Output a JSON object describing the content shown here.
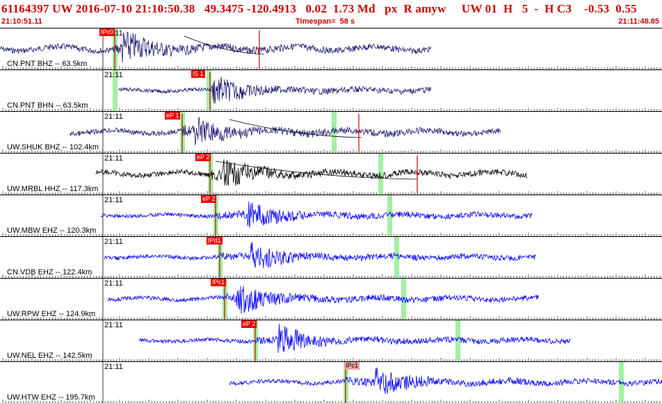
{
  "header": {
    "title": "61164397 UW 2016-07-10 21:10:50.38   49.3475 -120.4913   0.02  1.73 Md   px  R amyw     UW 01  H   5  -  H C3    -0.53  0.55",
    "start_time": "21:10:51.11",
    "timespan": "Timespan=  58 s",
    "end_time": "21:11:48.85"
  },
  "panels": [
    {
      "label": "CN.PNT BHZ -- 63.5km",
      "tick": "21:11",
      "pick": "IPc0",
      "pick_color": "#ee0000",
      "trace_color": "#1a1a6e"
    },
    {
      "label": "CN.PNT BHN -- 63.5km",
      "tick": "21:11",
      "pick": "iS 1",
      "pick_color": "#ee0000",
      "trace_color": "#1a1a6e"
    },
    {
      "label": "UW.SHUK BHZ -- 102.4km",
      "tick": "21:11",
      "pick": "eP 1",
      "pick_color": "#ee0000",
      "trace_color": "#1a1a6e"
    },
    {
      "label": "UW.MRBL HHZ -- 117.3km",
      "tick": "21:11",
      "pick": "eP 2",
      "pick_color": "#ee0000",
      "trace_color": "#000000"
    },
    {
      "label": "UW.MBW EHZ -- 120.3km",
      "tick": "21:11",
      "pick": "eP 2",
      "pick_color": "#ee0000",
      "trace_color": "#0000ff"
    },
    {
      "label": "CN.VDB EHZ -- 122.4km",
      "tick": "21:11",
      "pick": "IPd1",
      "pick_color": "#ee0000",
      "trace_color": "#0000ff"
    },
    {
      "label": "UW.RPW EHZ -- 124.9km",
      "tick": "21:11",
      "pick": "IPc1",
      "pick_color": "#ee0000",
      "trace_color": "#0000ff"
    },
    {
      "label": "UW.NEL EHZ -- 142.5km",
      "tick": "21:11",
      "pick": "eP 2",
      "pick_color": "#ee0000",
      "trace_color": "#0000ff"
    },
    {
      "label": "UW.HTW EHZ -- 195.7km",
      "tick": "21:11",
      "pick": "IPc1",
      "pick_color": "#f4a0a0",
      "trace_color": "#0000ff"
    }
  ]
}
